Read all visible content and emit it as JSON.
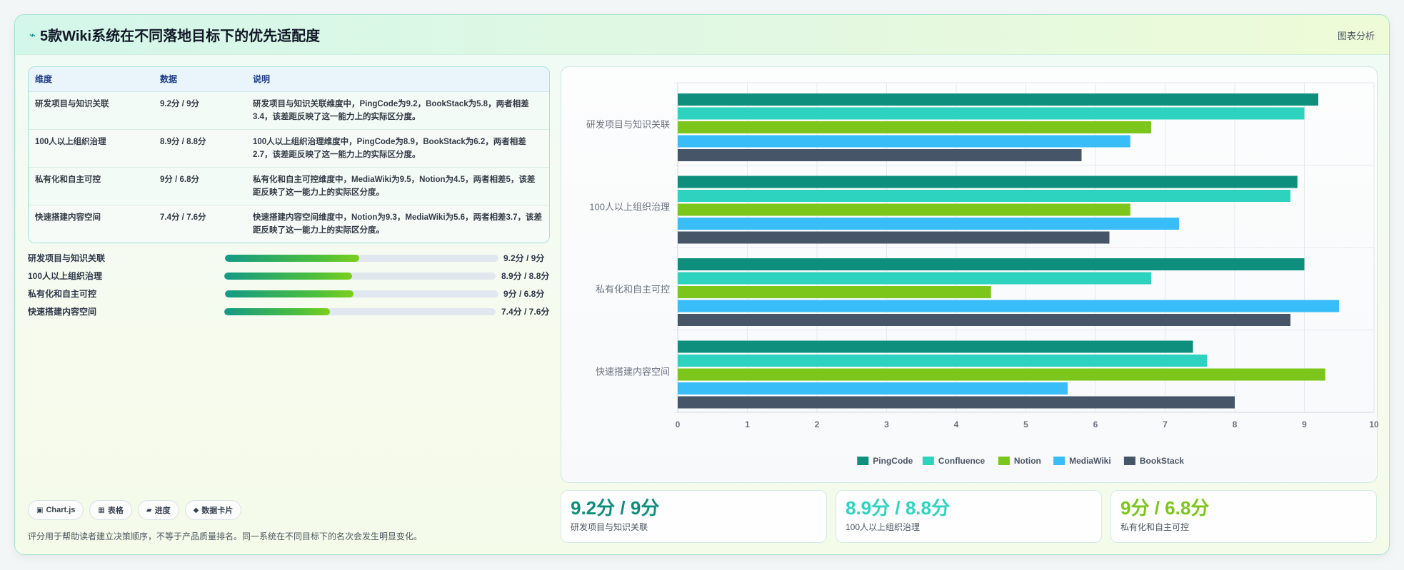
{
  "header": {
    "icon": "lightning-icon",
    "title": "5款Wiki系统在不同落地目标下的优先适配度",
    "tag": "图表分析"
  },
  "table": {
    "columns": [
      "维度",
      "数据",
      "说明"
    ],
    "rows": [
      {
        "dim": "研发项目与知识关联",
        "data": "9.2分 / 9分",
        "desc": "研发项目与知识关联维度中，PingCode为9.2，BookStack为5.8，两者相差3.4，该差距反映了这一能力上的实际区分度。"
      },
      {
        "dim": "100人以上组织治理",
        "data": "8.9分 / 8.8分",
        "desc": "100人以上组织治理维度中，PingCode为8.9，BookStack为6.2，两者相差2.7，该差距反映了这一能力上的实际区分度。"
      },
      {
        "dim": "私有化和自主可控",
        "data": "9分 / 6.8分",
        "desc": "私有化和自主可控维度中，MediaWiki为9.5，Notion为4.5，两者相差5，该差距反映了这一能力上的实际区分度。"
      },
      {
        "dim": "快速搭建内容空间",
        "data": "7.4分 / 7.6分",
        "desc": "快速搭建内容空间维度中，Notion为9.3，MediaWiki为5.6，两者相差3.7，该差距反映了这一能力上的实际区分度。"
      }
    ]
  },
  "progress": [
    {
      "label": "研发项目与知识关联",
      "value": "9.2分 / 9分",
      "fraction": 0.49
    },
    {
      "label": "100人以上组织治理",
      "value": "8.9分 / 8.8分",
      "fraction": 0.47
    },
    {
      "label": "私有化和自主可控",
      "value": "9分 / 6.8分",
      "fraction": 0.47
    },
    {
      "label": "快速搭建内容空间",
      "value": "7.4分 / 7.6分",
      "fraction": 0.39
    }
  ],
  "chips": [
    {
      "icon": "chart-icon",
      "glyph": "▣",
      "label": "Chart.js"
    },
    {
      "icon": "table-icon",
      "glyph": "▦",
      "label": "表格"
    },
    {
      "icon": "progress-icon",
      "glyph": "▰",
      "label": "进度"
    },
    {
      "icon": "card-icon",
      "glyph": "◆",
      "label": "数据卡片"
    }
  ],
  "footnote": "评分用于帮助读者建立决策顺序，不等于产品质量排名。同一系统在不同目标下的名次会发生明显变化。",
  "kpis": [
    {
      "value": "9.2分 / 9分",
      "label": "研发项目与知识关联",
      "color": "#0e8f7e"
    },
    {
      "value": "8.9分 / 8.8分",
      "label": "100人以上组织治理",
      "color": "#2ed3c0"
    },
    {
      "value": "9分 / 6.8分",
      "label": "私有化和自主可控",
      "color": "#7cc51b"
    }
  ],
  "chart_data": {
    "type": "bar",
    "orientation": "horizontal",
    "categories": [
      "研发项目与知识关联",
      "100人以上组织治理",
      "私有化和自主可控",
      "快速搭建内容空间"
    ],
    "series": [
      {
        "name": "PingCode",
        "color": "#0e8f7e",
        "values": [
          9.2,
          8.9,
          9.0,
          7.4
        ]
      },
      {
        "name": "Confluence",
        "color": "#2ed3c0",
        "values": [
          9.0,
          8.8,
          6.8,
          7.6
        ]
      },
      {
        "name": "Notion",
        "color": "#7cc51b",
        "values": [
          6.8,
          6.5,
          4.5,
          9.3
        ]
      },
      {
        "name": "MediaWiki",
        "color": "#38bdf8",
        "values": [
          6.5,
          7.2,
          9.5,
          5.6
        ]
      },
      {
        "name": "BookStack",
        "color": "#475569",
        "values": [
          5.8,
          6.2,
          8.8,
          8.0
        ]
      }
    ],
    "xlim": [
      0,
      10
    ],
    "xticks": [
      0,
      1,
      2,
      3,
      4,
      5,
      6,
      7,
      8,
      9,
      10
    ],
    "grid": true,
    "legend_position": "bottom"
  }
}
